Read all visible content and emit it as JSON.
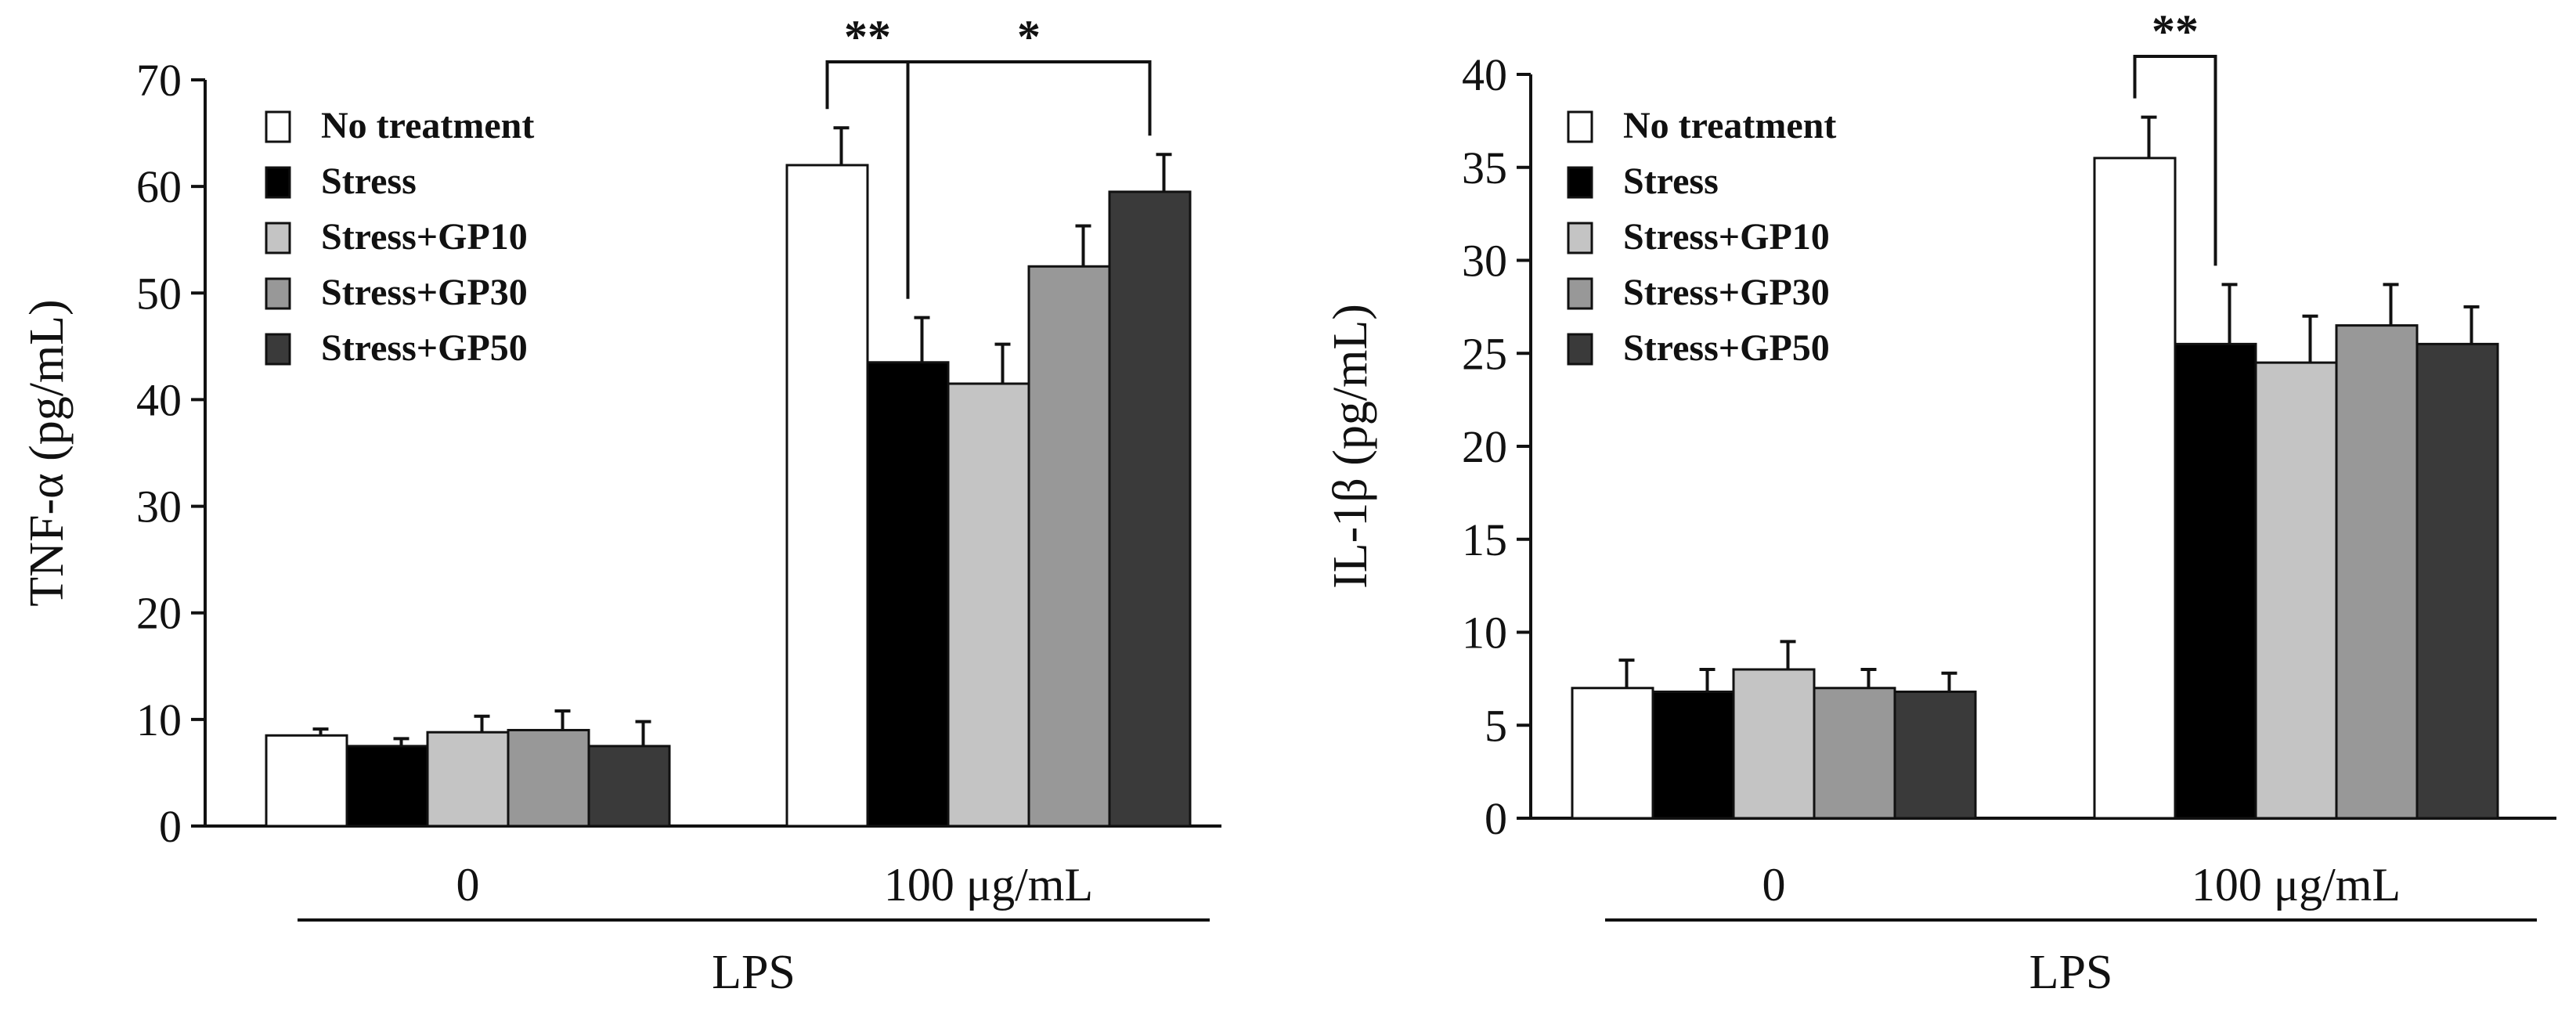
{
  "chart_data": [
    {
      "type": "bar",
      "ylabel": "TNF-α (pg/mL)",
      "xlabel": "LPS",
      "ylim": [
        0,
        70
      ],
      "yticks": [
        0,
        10,
        20,
        30,
        40,
        50,
        60,
        70
      ],
      "categories": [
        "0",
        "100 μg/mL"
      ],
      "series": [
        {
          "name": "No treatment",
          "color": "#ffffff",
          "values": [
            8.5,
            62
          ],
          "errors": [
            0.6,
            3.5
          ]
        },
        {
          "name": "Stress",
          "color": "#000000",
          "values": [
            7.5,
            43.5
          ],
          "errors": [
            0.7,
            4.2
          ]
        },
        {
          "name": "Stress+GP10",
          "color": "#c4c4c4",
          "values": [
            8.8,
            41.5
          ],
          "errors": [
            1.5,
            3.7
          ]
        },
        {
          "name": "Stress+GP30",
          "color": "#989898",
          "values": [
            9.0,
            52.5
          ],
          "errors": [
            1.8,
            3.8
          ]
        },
        {
          "name": "Stress+GP50",
          "color": "#3a3a3a",
          "values": [
            7.5,
            59.5
          ],
          "errors": [
            2.3,
            3.5
          ]
        }
      ],
      "significance": [
        {
          "label": "**",
          "group": 1,
          "from": 0,
          "to": 1
        },
        {
          "label": "*",
          "group": 1,
          "from": 1,
          "to": 4
        }
      ]
    },
    {
      "type": "bar",
      "ylabel": "IL-1β (pg/mL)",
      "xlabel": "LPS",
      "ylim": [
        0,
        40
      ],
      "yticks": [
        0,
        5,
        10,
        15,
        20,
        25,
        30,
        35,
        40
      ],
      "categories": [
        "0",
        "100 μg/mL"
      ],
      "series": [
        {
          "name": "No treatment",
          "color": "#ffffff",
          "values": [
            7.0,
            35.5
          ],
          "errors": [
            1.5,
            2.2
          ]
        },
        {
          "name": "Stress",
          "color": "#000000",
          "values": [
            6.8,
            25.5
          ],
          "errors": [
            1.2,
            3.2
          ]
        },
        {
          "name": "Stress+GP10",
          "color": "#c4c4c4",
          "values": [
            8.0,
            24.5
          ],
          "errors": [
            1.5,
            2.5
          ]
        },
        {
          "name": "Stress+GP30",
          "color": "#989898",
          "values": [
            7.0,
            26.5
          ],
          "errors": [
            1.0,
            2.2
          ]
        },
        {
          "name": "Stress+GP50",
          "color": "#3a3a3a",
          "values": [
            6.8,
            25.5
          ],
          "errors": [
            1.0,
            2.0
          ]
        }
      ],
      "significance": [
        {
          "label": "**",
          "group": 1,
          "from": 0,
          "to": 1
        }
      ]
    }
  ]
}
